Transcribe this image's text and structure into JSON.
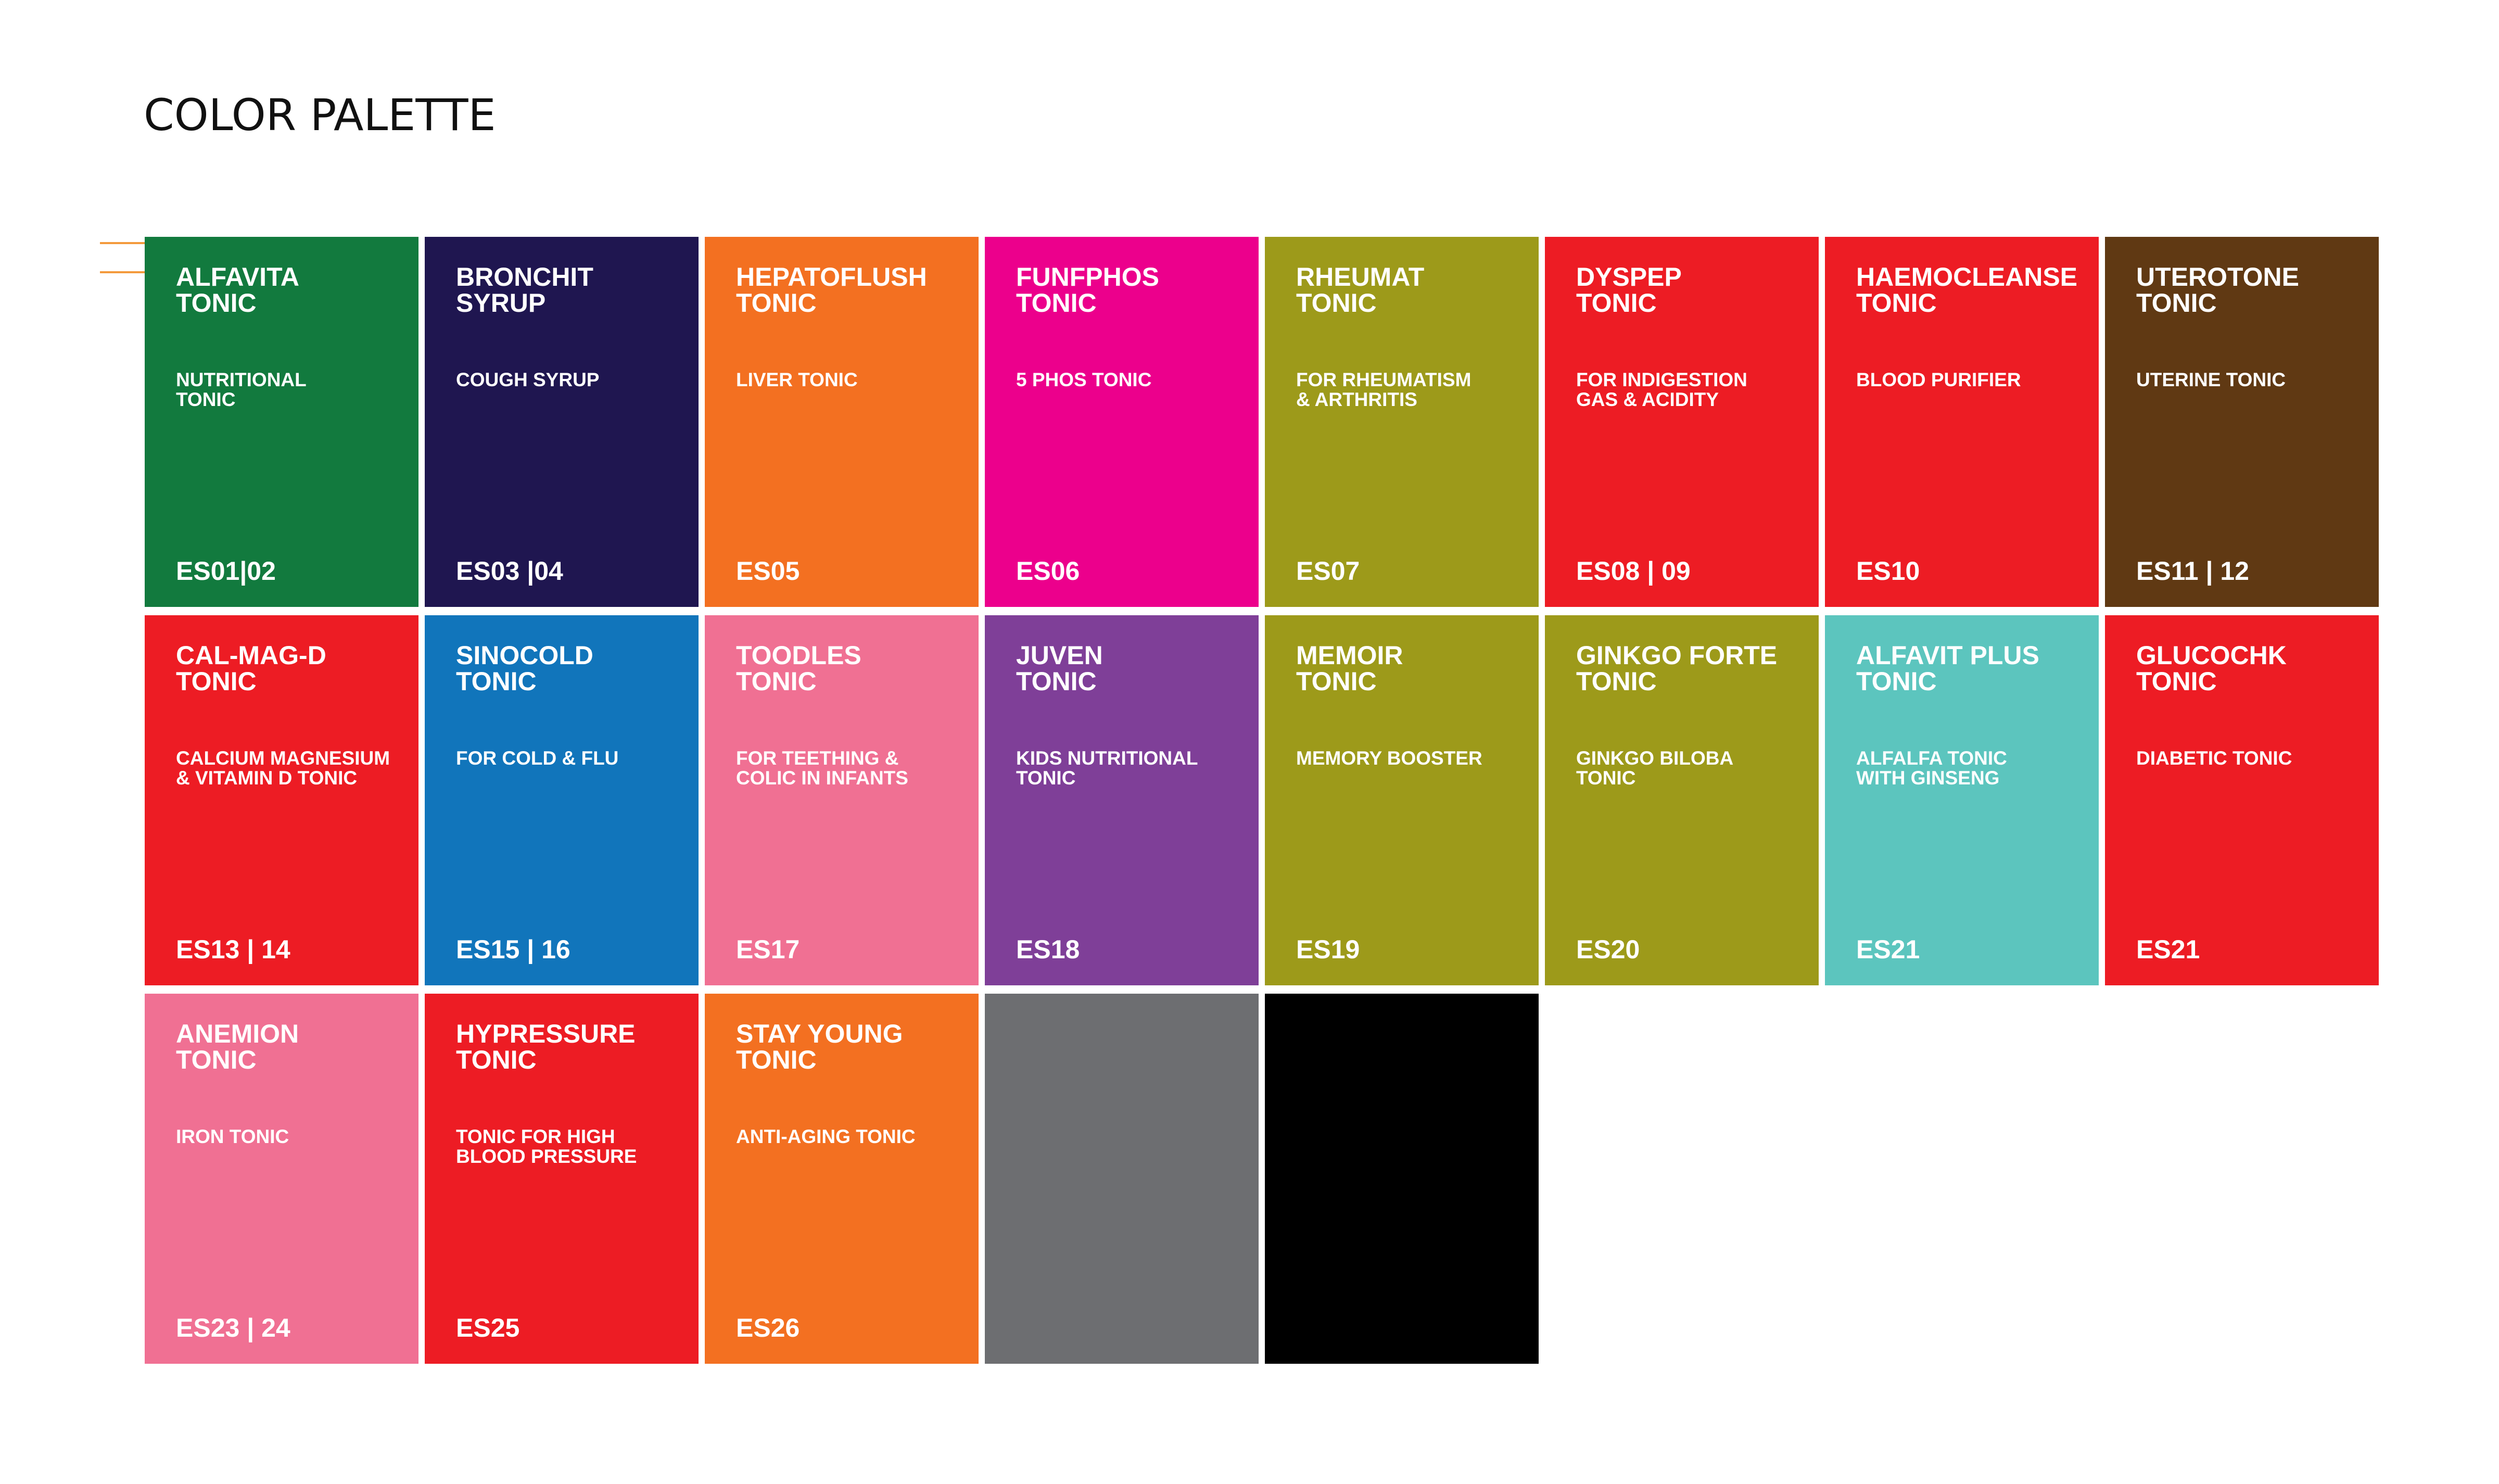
{
  "title": "COLOR PALETTE",
  "tiles": [
    {
      "name": [
        "ALFAVITA",
        "TONIC"
      ],
      "description": [
        "NUTRITIONAL",
        "TONIC"
      ],
      "code": "ES01|02",
      "color": "#127a3e"
    },
    {
      "name": [
        "BRONCHIT",
        "SYRUP"
      ],
      "description": [
        "COUGH SYRUP"
      ],
      "code": "ES03 |04",
      "color": "#1f1650"
    },
    {
      "name": [
        "HEPATOFLUSH",
        "TONIC"
      ],
      "description": [
        "LIVER TONIC"
      ],
      "code": "ES05",
      "color": "#f37021"
    },
    {
      "name": [
        "FUNFPHOS",
        "TONIC"
      ],
      "description": [
        "5 PHOS TONIC"
      ],
      "code": "ES06",
      "color": "#ec008c"
    },
    {
      "name": [
        "RHEUMAT",
        "TONIC"
      ],
      "description": [
        "FOR RHEUMATISM",
        "& ARTHRITIS"
      ],
      "code": "ES07",
      "color": "#9d9a1a"
    },
    {
      "name": [
        "DYSPEP",
        "TONIC"
      ],
      "description": [
        "FOR INDIGESTION",
        "GAS & ACIDITY"
      ],
      "code": "ES08 | 09",
      "color": "#ed1c24"
    },
    {
      "name": [
        "HAEMOCLEANSE",
        "TONIC"
      ],
      "description": [
        "BLOOD PURIFIER"
      ],
      "code": "ES10",
      "color": "#ed1c24"
    },
    {
      "name": [
        "UTEROTONE",
        "TONIC"
      ],
      "description": [
        "UTERINE TONIC"
      ],
      "code": "ES11 | 12",
      "color": "#603913"
    },
    {
      "name": [
        "CAL-MAG-D",
        "TONIC"
      ],
      "description": [
        "CALCIUM MAGNESIUM",
        "& VITAMIN D TONIC"
      ],
      "code": "ES13 | 14",
      "color": "#ed1c24"
    },
    {
      "name": [
        "SINOCOLD",
        "TONIC"
      ],
      "description": [
        "FOR COLD & FLU"
      ],
      "code": "ES15 | 16",
      "color": "#1175bb"
    },
    {
      "name": [
        "TOODLES",
        "TONIC"
      ],
      "description": [
        "FOR TEETHING &",
        "COLIC IN INFANTS"
      ],
      "code": "ES17",
      "color": "#f07093"
    },
    {
      "name": [
        "JUVEN",
        "TONIC"
      ],
      "description": [
        "KIDS NUTRITIONAL",
        "TONIC"
      ],
      "code": "ES18",
      "color": "#7f3f98"
    },
    {
      "name": [
        "MEMOIR",
        "TONIC"
      ],
      "description": [
        "MEMORY BOOSTER"
      ],
      "code": "ES19",
      "color": "#9d9a1a"
    },
    {
      "name": [
        "GINKGO FORTE",
        "TONIC"
      ],
      "description": [
        "GINKGO BILOBA",
        "TONIC"
      ],
      "code": "ES20",
      "color": "#9d9a1a"
    },
    {
      "name": [
        "ALFAVIT PLUS",
        "TONIC"
      ],
      "description": [
        "ALFALFA TONIC",
        "WITH GINSENG"
      ],
      "code": "ES21",
      "color": "#5cc5be"
    },
    {
      "name": [
        "GLUCOCHK",
        "TONIC"
      ],
      "description": [
        "DIABETIC TONIC"
      ],
      "code": "ES21",
      "color": "#ed1c24"
    },
    {
      "name": [
        "ANEMION",
        "TONIC"
      ],
      "description": [
        "IRON TONIC"
      ],
      "code": "ES23 | 24",
      "color": "#f07093"
    },
    {
      "name": [
        "HYPRESSURE",
        "TONIC"
      ],
      "description": [
        "TONIC FOR HIGH",
        "BLOOD PRESSURE"
      ],
      "code": "ES25",
      "color": "#ed1c24"
    },
    {
      "name": [
        "STAY YOUNG",
        "TONIC"
      ],
      "description": [
        "ANTI-AGING TONIC"
      ],
      "code": "ES26",
      "color": "#f37021"
    },
    {
      "color": "#6d6e71"
    },
    {
      "color": "#000000"
    }
  ]
}
